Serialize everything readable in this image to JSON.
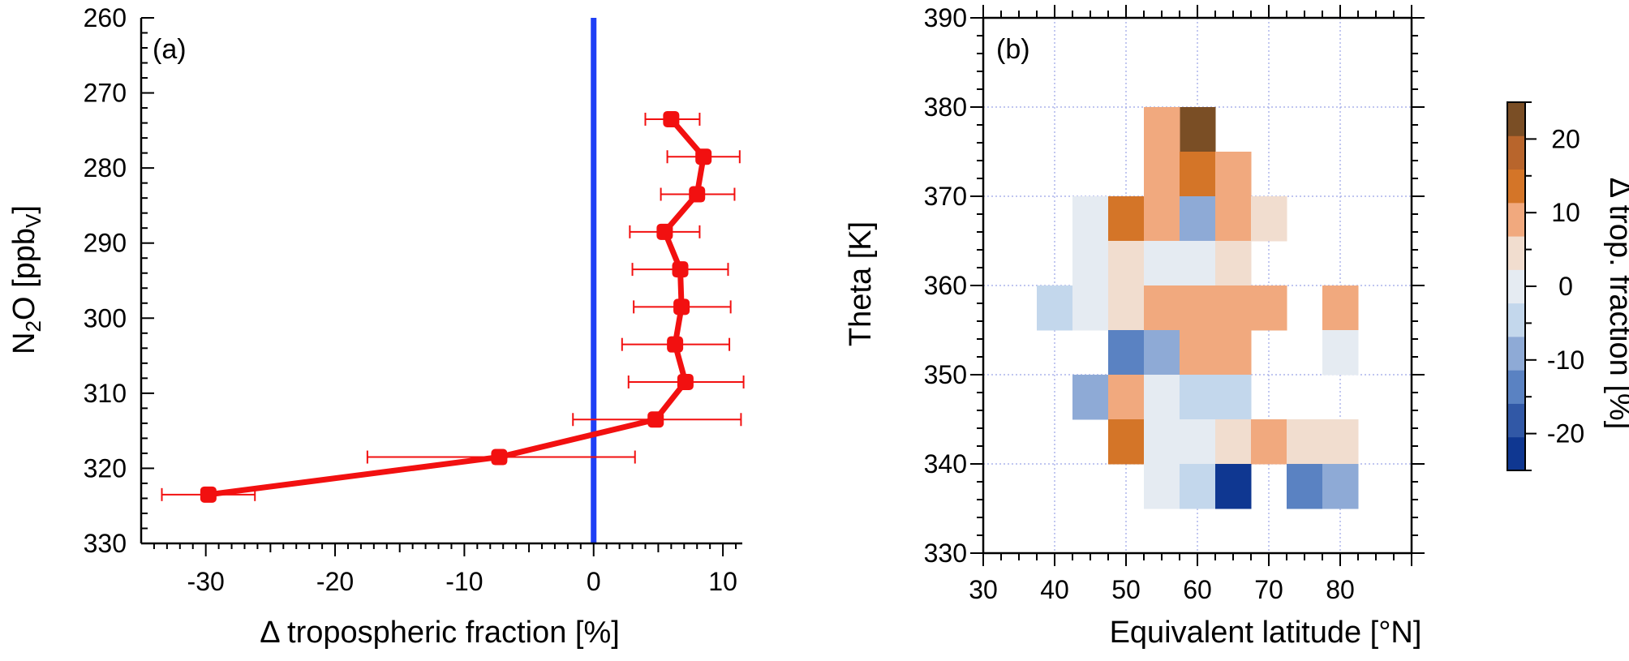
{
  "chart_data": [
    {
      "type": "line",
      "panel_label": "(a)",
      "xlabel": "Δ tropospheric fraction [%]",
      "ylabel_main": "N",
      "ylabel_sub1": "2",
      "ylabel_mid": "O [ppb",
      "ylabel_sub2": "V",
      "ylabel_end": "]",
      "xlim": [
        -35,
        11.5
      ],
      "ylim": [
        330,
        260
      ],
      "y_inverted": true,
      "xticks": [
        -30,
        -20,
        -10,
        0,
        10
      ],
      "xtick_labels": [
        "-30",
        "-20",
        "-10",
        "0",
        "10"
      ],
      "yticks": [
        260,
        270,
        280,
        290,
        300,
        310,
        320,
        330
      ],
      "ytick_labels": [
        "260",
        "270",
        "280",
        "290",
        "300",
        "310",
        "320",
        "330"
      ],
      "reference_line_x": 0,
      "reference_line_color": "#1f3ff5",
      "series_color": "#f21010",
      "points": [
        {
          "x": 6.0,
          "y": 273.5,
          "xerr_low": 4.0,
          "xerr_high": 8.2
        },
        {
          "x": 8.5,
          "y": 278.5,
          "xerr_low": 5.7,
          "xerr_high": 11.3
        },
        {
          "x": 8.0,
          "y": 283.5,
          "xerr_low": 5.2,
          "xerr_high": 10.9
        },
        {
          "x": 5.5,
          "y": 288.5,
          "xerr_low": 2.8,
          "xerr_high": 8.2
        },
        {
          "x": 6.7,
          "y": 293.5,
          "xerr_low": 3.0,
          "xerr_high": 10.4
        },
        {
          "x": 6.8,
          "y": 298.5,
          "xerr_low": 3.1,
          "xerr_high": 10.6
        },
        {
          "x": 6.3,
          "y": 303.5,
          "xerr_low": 2.2,
          "xerr_high": 10.5
        },
        {
          "x": 7.1,
          "y": 308.5,
          "xerr_low": 2.7,
          "xerr_high": 11.6
        },
        {
          "x": 4.8,
          "y": 313.5,
          "xerr_low": -1.6,
          "xerr_high": 11.4
        },
        {
          "x": -7.3,
          "y": 318.5,
          "xerr_low": -17.5,
          "xerr_high": 3.2
        },
        {
          "x": -29.8,
          "y": 323.5,
          "xerr_low": -33.4,
          "xerr_high": -26.2
        }
      ]
    },
    {
      "type": "heatmap",
      "panel_label": "(b)",
      "xlabel": "Equivalent latitude [°N]",
      "ylabel": "Theta [K]",
      "xlim": [
        30,
        90
      ],
      "ylim": [
        330,
        390
      ],
      "xticks": [
        30,
        40,
        50,
        60,
        70,
        80
      ],
      "xtick_labels": [
        "30",
        "40",
        "50",
        "60",
        "70",
        "80"
      ],
      "yticks": [
        330,
        340,
        350,
        360,
        370,
        380,
        390
      ],
      "ytick_labels": [
        "330",
        "340",
        "350",
        "360",
        "370",
        "380",
        "390"
      ],
      "grid": true,
      "cell_width_deg": 5,
      "cell_height_K": 5,
      "colorbar": {
        "label": "Δ trop. fraction [%]",
        "range": [
          -25,
          25
        ],
        "step": 5,
        "tick_values": [
          20,
          10,
          0,
          -10,
          -20
        ],
        "tick_labels": [
          "20",
          "10",
          "0",
          "-10",
          "-20"
        ],
        "colors": [
          "#0f3791",
          "#3158a6",
          "#5a82c2",
          "#8eaad6",
          "#c3d7ec",
          "#e5ebf2",
          "#f1ddcf",
          "#f1a97e",
          "#d47528",
          "#b8652c",
          "#7a4e25"
        ]
      },
      "cells": [
        {
          "lat": 60,
          "theta": 377.5,
          "value": 24
        },
        {
          "lat": 55,
          "theta": 377.5,
          "value": 8
        },
        {
          "lat": 55,
          "theta": 372.5,
          "value": 8
        },
        {
          "lat": 60,
          "theta": 372.5,
          "value": 13
        },
        {
          "lat": 65,
          "theta": 372.5,
          "value": 8
        },
        {
          "lat": 45,
          "theta": 367.5,
          "value": -2
        },
        {
          "lat": 50,
          "theta": 367.5,
          "value": 13
        },
        {
          "lat": 55,
          "theta": 367.5,
          "value": 8
        },
        {
          "lat": 60,
          "theta": 367.5,
          "value": -8
        },
        {
          "lat": 65,
          "theta": 367.5,
          "value": 8
        },
        {
          "lat": 70,
          "theta": 367.5,
          "value": 3
        },
        {
          "lat": 45,
          "theta": 362.5,
          "value": -2
        },
        {
          "lat": 50,
          "theta": 362.5,
          "value": 3
        },
        {
          "lat": 55,
          "theta": 362.5,
          "value": -2
        },
        {
          "lat": 60,
          "theta": 362.5,
          "value": -2
        },
        {
          "lat": 65,
          "theta": 362.5,
          "value": 3
        },
        {
          "lat": 40,
          "theta": 357.5,
          "value": -3
        },
        {
          "lat": 45,
          "theta": 357.5,
          "value": -2
        },
        {
          "lat": 50,
          "theta": 357.5,
          "value": 3
        },
        {
          "lat": 55,
          "theta": 357.5,
          "value": 8
        },
        {
          "lat": 60,
          "theta": 357.5,
          "value": 8
        },
        {
          "lat": 65,
          "theta": 357.5,
          "value": 8
        },
        {
          "lat": 70,
          "theta": 357.5,
          "value": 8
        },
        {
          "lat": 80,
          "theta": 357.5,
          "value": 8
        },
        {
          "lat": 50,
          "theta": 352.5,
          "value": -13
        },
        {
          "lat": 55,
          "theta": 352.5,
          "value": -8
        },
        {
          "lat": 60,
          "theta": 352.5,
          "value": 8
        },
        {
          "lat": 65,
          "theta": 352.5,
          "value": 8
        },
        {
          "lat": 80,
          "theta": 352.5,
          "value": -2
        },
        {
          "lat": 45,
          "theta": 347.5,
          "value": -8
        },
        {
          "lat": 50,
          "theta": 347.5,
          "value": 8
        },
        {
          "lat": 55,
          "theta": 347.5,
          "value": -2
        },
        {
          "lat": 60,
          "theta": 347.5,
          "value": -3
        },
        {
          "lat": 65,
          "theta": 347.5,
          "value": -3
        },
        {
          "lat": 50,
          "theta": 342.5,
          "value": 13
        },
        {
          "lat": 55,
          "theta": 342.5,
          "value": -2
        },
        {
          "lat": 60,
          "theta": 342.5,
          "value": -2
        },
        {
          "lat": 65,
          "theta": 342.5,
          "value": 3
        },
        {
          "lat": 70,
          "theta": 342.5,
          "value": 8
        },
        {
          "lat": 75,
          "theta": 342.5,
          "value": 3
        },
        {
          "lat": 80,
          "theta": 342.5,
          "value": 3
        },
        {
          "lat": 55,
          "theta": 337.5,
          "value": -2
        },
        {
          "lat": 60,
          "theta": 337.5,
          "value": -3
        },
        {
          "lat": 65,
          "theta": 337.5,
          "value": -23
        },
        {
          "lat": 75,
          "theta": 337.5,
          "value": -13
        },
        {
          "lat": 80,
          "theta": 337.5,
          "value": -8
        }
      ]
    }
  ]
}
